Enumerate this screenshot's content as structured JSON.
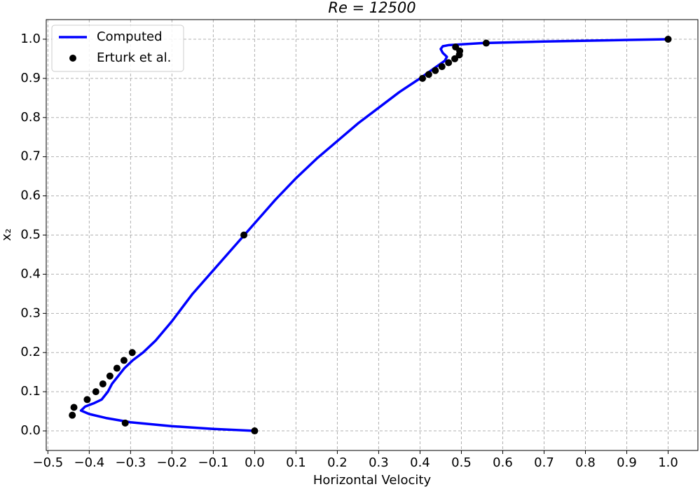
{
  "chart_data": {
    "type": "line-scatter",
    "title": "Re = 12500",
    "x_label": "Horizontal Velocity",
    "y_label": "x₂",
    "xlim": [
      -0.504,
      1.072
    ],
    "ylim": [
      -0.05,
      1.05
    ],
    "xticks": [
      {
        "value": -0.5,
        "label": "−0.5"
      },
      {
        "value": -0.4,
        "label": "−0.4"
      },
      {
        "value": -0.3,
        "label": "−0.3"
      },
      {
        "value": -0.2,
        "label": "−0.2"
      },
      {
        "value": -0.1,
        "label": "−0.1"
      },
      {
        "value": 0,
        "label": "0.0"
      },
      0.1,
      0.2,
      0.3,
      0.4,
      0.5,
      0.6,
      0.7,
      0.8,
      0.9,
      {
        "value": 1,
        "label": "1.0"
      }
    ],
    "yticks": [
      {
        "value": 0,
        "label": "0.0"
      },
      0.1,
      0.2,
      0.3,
      0.4,
      0.5,
      0.6,
      0.7,
      0.8,
      0.9,
      {
        "value": 1,
        "label": "1.0"
      }
    ],
    "grid": true,
    "legend": "upper-left",
    "series": [
      {
        "name": "Computed",
        "kind": "line",
        "color": "#0000ff",
        "x": [
          0,
          -0.1,
          -0.2,
          -0.3,
          -0.36,
          -0.4,
          -0.42,
          -0.41,
          -0.39,
          -0.37,
          -0.355,
          -0.345,
          -0.33,
          -0.315,
          -0.295,
          -0.27,
          -0.24,
          -0.2,
          -0.15,
          -0.1,
          -0.05,
          0,
          0.05,
          0.1,
          0.15,
          0.2,
          0.25,
          0.3,
          0.35,
          0.4,
          0.44,
          0.46,
          0.465,
          0.455,
          0.45,
          0.455,
          0.47,
          0.55,
          0.7,
          0.85,
          1.0
        ],
        "values": [
          0,
          0.005,
          0.012,
          0.022,
          0.033,
          0.043,
          0.052,
          0.062,
          0.07,
          0.08,
          0.1,
          0.12,
          0.14,
          0.16,
          0.18,
          0.2,
          0.23,
          0.28,
          0.35,
          0.41,
          0.47,
          0.53,
          0.59,
          0.645,
          0.695,
          0.74,
          0.785,
          0.825,
          0.865,
          0.9,
          0.93,
          0.945,
          0.955,
          0.965,
          0.975,
          0.982,
          0.985,
          0.99,
          0.994,
          0.997,
          1.0
        ]
      },
      {
        "name": "Erturk et al.",
        "kind": "scatter",
        "color": "#000000",
        "x": [
          1.0,
          0.56,
          0.486,
          0.496,
          0.495,
          0.484,
          0.469,
          0.453,
          0.437,
          0.421,
          0.406,
          -0.026,
          -0.296,
          -0.316,
          -0.333,
          -0.35,
          -0.367,
          -0.384,
          -0.405,
          -0.437,
          -0.441,
          -0.313,
          0
        ],
        "values": [
          1.0,
          0.99,
          0.98,
          0.97,
          0.96,
          0.95,
          0.94,
          0.93,
          0.92,
          0.91,
          0.9,
          0.5,
          0.2,
          0.18,
          0.16,
          0.14,
          0.12,
          0.1,
          0.08,
          0.06,
          0.04,
          0.02,
          0
        ]
      }
    ]
  }
}
